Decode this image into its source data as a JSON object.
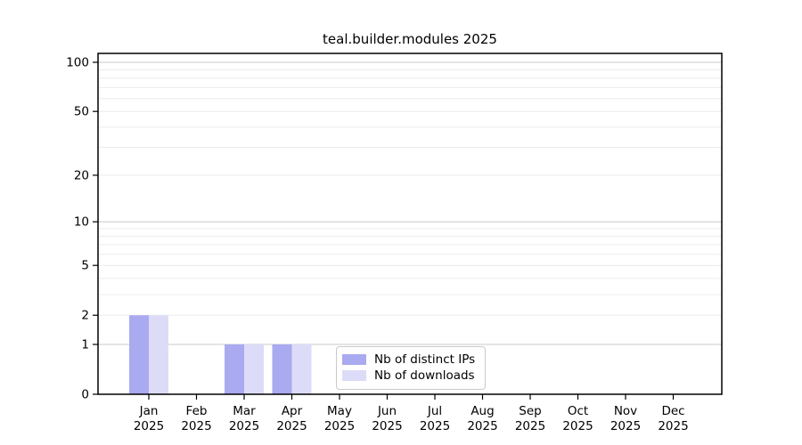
{
  "chart_data": {
    "type": "bar",
    "title": "teal.builder.modules 2025",
    "categories": [
      "Jan",
      "Feb",
      "Mar",
      "Apr",
      "May",
      "Jun",
      "Jul",
      "Aug",
      "Sep",
      "Oct",
      "Nov",
      "Dec"
    ],
    "year": "2025",
    "series": [
      {
        "name": "Nb of distinct IPs",
        "color": "#aaaaf0",
        "values": [
          2,
          0,
          1,
          1,
          0,
          0,
          0,
          0,
          0,
          0,
          0,
          0
        ]
      },
      {
        "name": "Nb of downloads",
        "color": "#dcdcf8",
        "values": [
          2,
          0,
          1,
          1,
          0,
          0,
          0,
          0,
          0,
          0,
          0,
          0
        ]
      }
    ],
    "xlabel": "",
    "ylabel": "",
    "yticks": [
      0,
      1,
      2,
      5,
      10,
      20,
      50,
      100
    ],
    "ylim": [
      0,
      115
    ],
    "yscale": "log10(1+v)",
    "grid": "horizontal, minor lines at 1-9 and 10-90, decades emphasized",
    "legend_position": "inside bottom-center",
    "style": {
      "grid_major_color": "#c8c8c8",
      "grid_minor_color": "#ececec",
      "frame_color": "#000000",
      "background": "#ffffff"
    }
  }
}
